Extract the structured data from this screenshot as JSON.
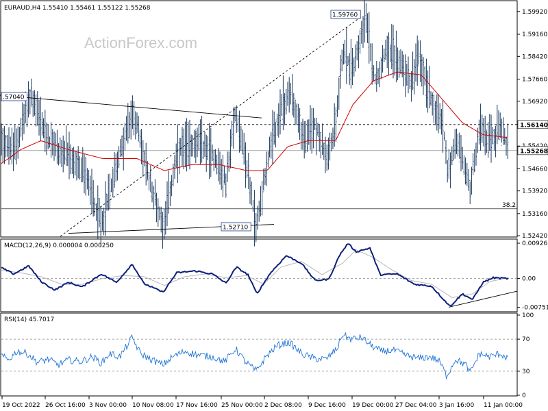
{
  "chart_data": {
    "type": "candlestick",
    "symbol_header": "EURAUD,H4  1.55410 1.55461 1.55122 1.55268",
    "watermark": "ActionForex.com",
    "price_axis": {
      "ylim": [
        1.524,
        1.6026
      ],
      "ticks": [
        "1.59920",
        "1.59160",
        "1.58420",
        "1.57660",
        "1.56920",
        "1.56140",
        "1.55420",
        "1.54660",
        "1.53920",
        "1.53160",
        "1.52420"
      ],
      "current_price_label": "1.55268",
      "current_price": 1.55268,
      "level_label": "1.56140",
      "level_value": 1.5614
    },
    "annotations": {
      "high_label": "1.59760",
      "high_value": 1.5976,
      "low_label": "1.52710",
      "low_value": 1.5271,
      "left_label": ".57040",
      "left_value": 1.5704,
      "fib_label": "38.2",
      "fib_value": 1.5332
    },
    "x_labels": [
      "19 Oct 2022",
      "26 Oct 16:00",
      "3 Nov 00:00",
      "10 Nov 08:00",
      "17 Nov 16:00",
      "25 Nov 00:00",
      "2 Dec 08:00",
      "9 Dec 16:00",
      "19 Dec 00:00",
      "27 Dec 04:00",
      "3 Jan 16:00",
      "11 Jan 00:00"
    ],
    "price_path": [
      [
        0,
        1.558
      ],
      [
        20,
        1.552
      ],
      [
        45,
        1.571
      ],
      [
        70,
        1.556
      ],
      [
        100,
        1.55
      ],
      [
        125,
        1.545
      ],
      [
        148,
        1.528
      ],
      [
        170,
        1.548
      ],
      [
        195,
        1.566
      ],
      [
        215,
        1.545
      ],
      [
        238,
        1.528
      ],
      [
        260,
        1.552
      ],
      [
        285,
        1.556
      ],
      [
        310,
        1.552
      ],
      [
        330,
        1.542
      ],
      [
        344,
        1.566
      ],
      [
        360,
        1.548
      ],
      [
        374,
        1.527
      ],
      [
        390,
        1.549
      ],
      [
        410,
        1.566
      ],
      [
        425,
        1.572
      ],
      [
        445,
        1.555
      ],
      [
        460,
        1.562
      ],
      [
        478,
        1.549
      ],
      [
        490,
        1.562
      ],
      [
        500,
        1.586
      ],
      [
        515,
        1.58
      ],
      [
        533,
        1.598
      ],
      [
        548,
        1.576
      ],
      [
        565,
        1.588
      ],
      [
        585,
        1.582
      ],
      [
        600,
        1.576
      ],
      [
        612,
        1.584
      ],
      [
        630,
        1.57
      ],
      [
        648,
        1.56
      ],
      [
        653,
        1.546
      ],
      [
        668,
        1.556
      ],
      [
        686,
        1.54
      ],
      [
        700,
        1.56
      ],
      [
        715,
        1.556
      ],
      [
        730,
        1.56
      ],
      [
        742,
        1.553
      ]
    ],
    "moving_average": [
      [
        0,
        1.548
      ],
      [
        30,
        1.553
      ],
      [
        60,
        1.556
      ],
      [
        100,
        1.553
      ],
      [
        150,
        1.55
      ],
      [
        200,
        1.55
      ],
      [
        240,
        1.546
      ],
      [
        280,
        1.548
      ],
      [
        320,
        1.548
      ],
      [
        360,
        1.546
      ],
      [
        390,
        1.546
      ],
      [
        420,
        1.554
      ],
      [
        450,
        1.556
      ],
      [
        490,
        1.556
      ],
      [
        515,
        1.568
      ],
      [
        545,
        1.576
      ],
      [
        580,
        1.579
      ],
      [
        615,
        1.578
      ],
      [
        645,
        1.57
      ],
      [
        675,
        1.562
      ],
      [
        705,
        1.558
      ],
      [
        742,
        1.557
      ]
    ],
    "trendlines": [
      {
        "x1": 0,
        "y1": 1.5712,
        "x2": 382,
        "y2": 1.5636,
        "style": "solid"
      },
      {
        "x1": 100,
        "y1": 1.525,
        "x2": 400,
        "y2": 1.528,
        "style": "solid"
      },
      {
        "x1": 88,
        "y1": 1.524,
        "x2": 528,
        "y2": 1.5976,
        "style": "dashed"
      }
    ],
    "macd": {
      "label": "MACD(12,26,9) 0.000004 0.000250",
      "ylim": [
        -0.0085,
        0.0098
      ],
      "ticks": [
        "0.009263",
        "0.00",
        "-0.007517"
      ],
      "main": [
        [
          0,
          0.003
        ],
        [
          20,
          0.0012
        ],
        [
          42,
          0.0033
        ],
        [
          60,
          -0.0008
        ],
        [
          80,
          -0.003
        ],
        [
          100,
          -0.001
        ],
        [
          120,
          -0.0022
        ],
        [
          148,
          0.0012
        ],
        [
          170,
          -0.001
        ],
        [
          193,
          0.0038
        ],
        [
          210,
          -0.0013
        ],
        [
          238,
          -0.0036
        ],
        [
          258,
          0.0015
        ],
        [
          285,
          0.002
        ],
        [
          310,
          0.0012
        ],
        [
          330,
          -0.0012
        ],
        [
          345,
          0.003
        ],
        [
          362,
          0.001
        ],
        [
          375,
          -0.004
        ],
        [
          395,
          0.0015
        ],
        [
          418,
          0.006
        ],
        [
          440,
          0.004
        ],
        [
          460,
          -0.0005
        ],
        [
          480,
          -0.0002
        ],
        [
          496,
          0.0062
        ],
        [
          508,
          0.0092
        ],
        [
          520,
          0.007
        ],
        [
          540,
          0.008
        ],
        [
          555,
          0.001
        ],
        [
          580,
          0.0012
        ],
        [
          605,
          -0.0015
        ],
        [
          630,
          -0.002
        ],
        [
          657,
          -0.0073
        ],
        [
          675,
          -0.004
        ],
        [
          690,
          -0.0055
        ],
        [
          705,
          -0.001
        ],
        [
          720,
          0.0002
        ],
        [
          742,
          0.0
        ]
      ],
      "signal": [
        [
          0,
          0.0022
        ],
        [
          30,
          0.0015
        ],
        [
          60,
          0.0005
        ],
        [
          90,
          -0.0015
        ],
        [
          120,
          -0.0015
        ],
        [
          150,
          0.0
        ],
        [
          180,
          0.0008
        ],
        [
          210,
          0.0005
        ],
        [
          240,
          -0.0018
        ],
        [
          270,
          0.0005
        ],
        [
          300,
          0.0012
        ],
        [
          330,
          0.0002
        ],
        [
          360,
          0.0008
        ],
        [
          385,
          -0.0015
        ],
        [
          410,
          0.003
        ],
        [
          440,
          0.0045
        ],
        [
          470,
          0.001
        ],
        [
          500,
          0.004
        ],
        [
          520,
          0.0075
        ],
        [
          545,
          0.0055
        ],
        [
          570,
          0.0025
        ],
        [
          600,
          -0.0005
        ],
        [
          630,
          -0.0015
        ],
        [
          660,
          -0.005
        ],
        [
          690,
          -0.004
        ],
        [
          715,
          -0.0008
        ],
        [
          742,
          0.0002
        ]
      ],
      "trendline": {
        "x1": 655,
        "y1": -0.0075,
        "x2": 755,
        "y2": -0.0033
      }
    },
    "rsi": {
      "label": "RSI(14) 45.7017",
      "ylim": [
        0,
        100
      ],
      "levels": [
        30,
        70
      ],
      "ticks": [
        "100",
        "70",
        "30",
        "0"
      ],
      "values": [
        [
          0,
          50
        ],
        [
          12,
          44
        ],
        [
          25,
          55
        ],
        [
          40,
          52
        ],
        [
          55,
          41
        ],
        [
          70,
          45
        ],
        [
          85,
          38
        ],
        [
          100,
          44
        ],
        [
          118,
          42
        ],
        [
          135,
          48
        ],
        [
          148,
          40
        ],
        [
          160,
          52
        ],
        [
          175,
          48
        ],
        [
          193,
          72
        ],
        [
          205,
          52
        ],
        [
          220,
          45
        ],
        [
          238,
          38
        ],
        [
          252,
          48
        ],
        [
          270,
          55
        ],
        [
          290,
          50
        ],
        [
          310,
          48
        ],
        [
          328,
          42
        ],
        [
          344,
          58
        ],
        [
          358,
          42
        ],
        [
          374,
          30
        ],
        [
          388,
          48
        ],
        [
          405,
          62
        ],
        [
          422,
          66
        ],
        [
          440,
          52
        ],
        [
          458,
          46
        ],
        [
          476,
          45
        ],
        [
          492,
          58
        ],
        [
          500,
          76
        ],
        [
          512,
          70
        ],
        [
          528,
          72
        ],
        [
          542,
          62
        ],
        [
          556,
          55
        ],
        [
          575,
          56
        ],
        [
          592,
          50
        ],
        [
          610,
          46
        ],
        [
          628,
          48
        ],
        [
          642,
          42
        ],
        [
          652,
          24
        ],
        [
          665,
          45
        ],
        [
          680,
          38
        ],
        [
          686,
          28
        ],
        [
          700,
          52
        ],
        [
          715,
          48
        ],
        [
          730,
          52
        ],
        [
          742,
          46
        ]
      ]
    }
  }
}
